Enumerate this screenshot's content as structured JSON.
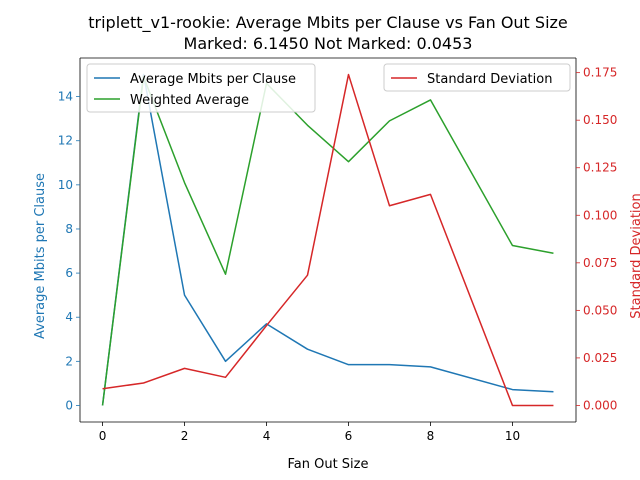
{
  "chart_data": {
    "type": "line",
    "title_line1": "triplett_v1-rookie: Average Mbits per Clause vs Fan Out Size",
    "title_line2": "Marked: 6.1450 Not Marked: 0.0453",
    "xlabel": "Fan Out Size",
    "ylabel_left": "Average Mbits per Clause",
    "ylabel_right": "Standard Deviation",
    "x": [
      0,
      1,
      2,
      3,
      4,
      5,
      6,
      7,
      8,
      10,
      11
    ],
    "xlim": [
      -0.55,
      11.55
    ],
    "ylim_left": [
      -0.75,
      15.75
    ],
    "ylim_right": [
      -0.0087,
      0.1827
    ],
    "xticks": [
      0,
      2,
      4,
      6,
      8,
      10
    ],
    "yticks_left": [
      0,
      2,
      4,
      6,
      8,
      10,
      12,
      14
    ],
    "yticks_right": [
      "0.000",
      "0.025",
      "0.050",
      "0.075",
      "0.100",
      "0.125",
      "0.150",
      "0.175"
    ],
    "yticks_right_values": [
      0,
      0.025,
      0.05,
      0.075,
      0.1,
      0.125,
      0.15,
      0.175
    ],
    "grid": false,
    "series": [
      {
        "name": "Average Mbits per Clause",
        "axis": "left",
        "color": "#1f77b4",
        "values": [
          0.0,
          15.0,
          5.0,
          2.0,
          3.7,
          2.55,
          1.85,
          1.85,
          1.75,
          0.72,
          0.62
        ]
      },
      {
        "name": "Weighted Average",
        "axis": "left",
        "color": "#2ca02c",
        "values": [
          0.0,
          14.9,
          10.1,
          5.95,
          14.6,
          12.7,
          11.05,
          12.9,
          13.85,
          7.25,
          6.9
        ]
      },
      {
        "name": "Standard Deviation",
        "axis": "right",
        "color": "#d62728",
        "values": [
          0.0088,
          0.0118,
          0.0195,
          0.0148,
          0.042,
          0.0685,
          0.174,
          0.105,
          0.111,
          0.0,
          0.0
        ]
      }
    ],
    "legend_left_placement": "upper-left",
    "legend_right_placement": "upper-right"
  },
  "colors": {
    "left_axis": "#1f77b4",
    "right_axis": "#d62728",
    "green": "#2ca02c"
  }
}
